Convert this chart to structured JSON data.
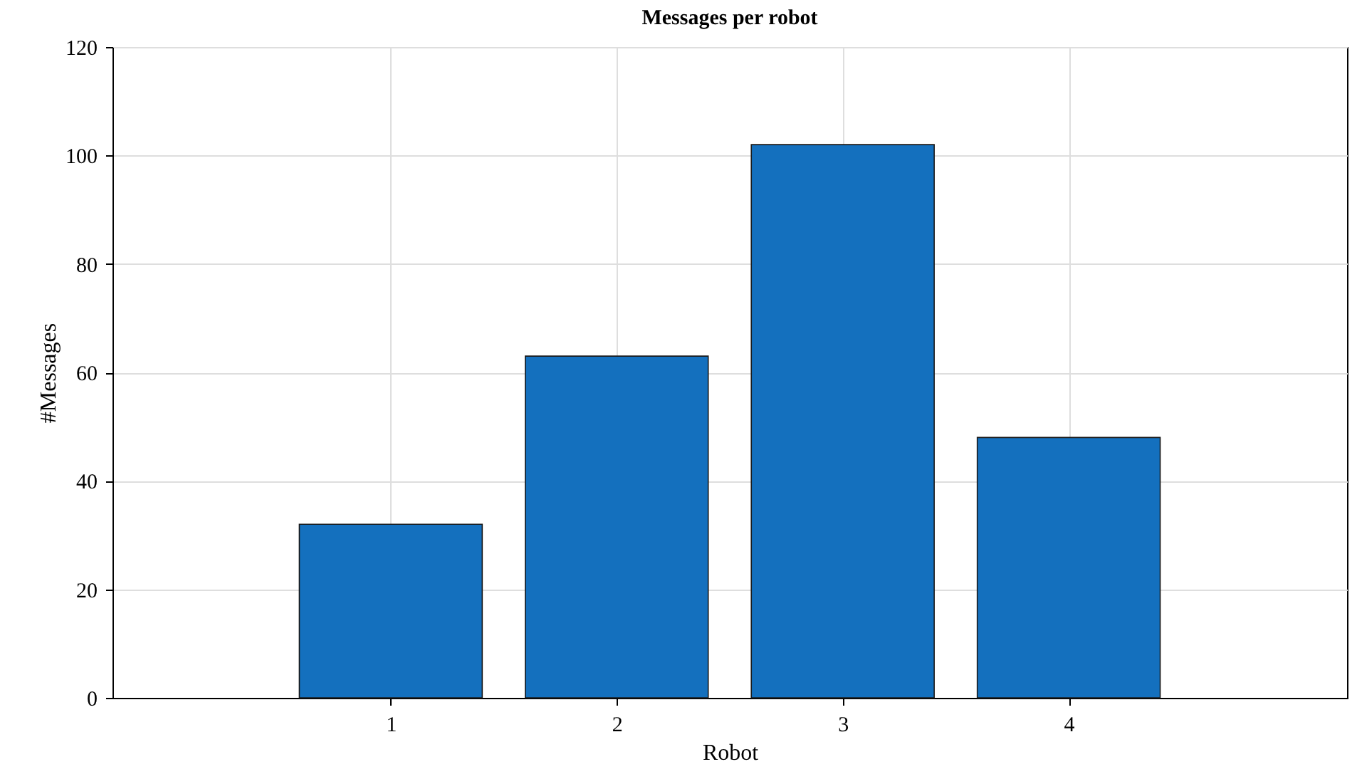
{
  "chart_data": {
    "type": "bar",
    "title": "Messages per robot",
    "xlabel": "Robot",
    "ylabel": "#Messages",
    "x": [
      1,
      2,
      3,
      4
    ],
    "values": [
      32,
      63,
      102,
      48
    ],
    "color": "#1470be",
    "xlim": [
      -0.2,
      5.2
    ],
    "xticks": [
      1,
      2,
      3,
      4
    ],
    "ylim": [
      0,
      120
    ],
    "yticks": [
      0,
      20,
      40,
      60,
      80,
      100,
      120
    ],
    "grid": true
  }
}
